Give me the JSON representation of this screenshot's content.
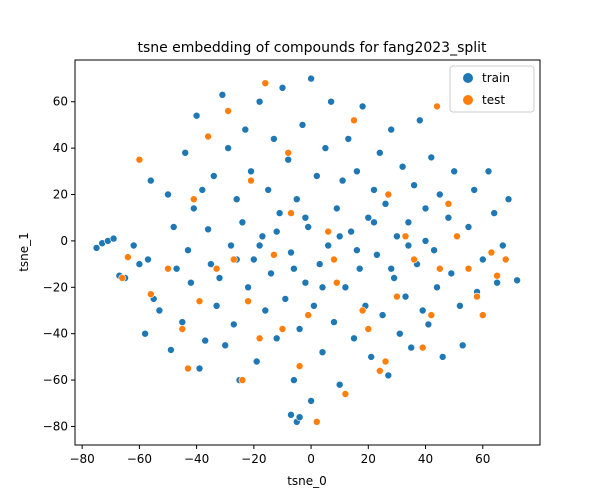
{
  "chart_data": {
    "type": "scatter",
    "title": "tsne embedding of compounds for fang2023_split",
    "xlabel": "tsne_0",
    "ylabel": "tsne_1",
    "xlim": [
      -82.5,
      80
    ],
    "ylim": [
      -88,
      78
    ],
    "xticks": [
      -80,
      -60,
      -40,
      -20,
      0,
      20,
      40,
      60
    ],
    "yticks": [
      -80,
      -60,
      -40,
      -20,
      0,
      20,
      40,
      60
    ],
    "legend_position": "top-right",
    "grid": false,
    "series": [
      {
        "name": "train",
        "color": "#1f77b4",
        "points": [
          [
            -75,
            -3
          ],
          [
            -73,
            -1
          ],
          [
            -71,
            0
          ],
          [
            -69,
            1
          ],
          [
            -67,
            -15
          ],
          [
            -65,
            -16
          ],
          [
            -62,
            -2
          ],
          [
            -60,
            -10
          ],
          [
            -58,
            -40
          ],
          [
            -57,
            -8
          ],
          [
            -56,
            26
          ],
          [
            -55,
            -25
          ],
          [
            -53,
            -30
          ],
          [
            -50,
            20
          ],
          [
            -49,
            -47
          ],
          [
            -48,
            6
          ],
          [
            -45,
            -35
          ],
          [
            -44,
            38
          ],
          [
            -42,
            -18
          ],
          [
            -41,
            14
          ],
          [
            -40,
            54
          ],
          [
            -39,
            -55
          ],
          [
            -37,
            -43
          ],
          [
            -36,
            5
          ],
          [
            -35,
            -10
          ],
          [
            -34,
            28
          ],
          [
            -33,
            -28
          ],
          [
            -31,
            63
          ],
          [
            -30,
            -45
          ],
          [
            -29,
            40
          ],
          [
            -28,
            -2
          ],
          [
            -27,
            -36
          ],
          [
            -26,
            18
          ],
          [
            -25,
            -60
          ],
          [
            -24,
            8
          ],
          [
            -23,
            48
          ],
          [
            -22,
            -20
          ],
          [
            -21,
            30
          ],
          [
            -20,
            -8
          ],
          [
            -19,
            -52
          ],
          [
            -18,
            60
          ],
          [
            -17,
            2
          ],
          [
            -16,
            -30
          ],
          [
            -15,
            22
          ],
          [
            -14,
            -14
          ],
          [
            -13,
            44
          ],
          [
            -12,
            -42
          ],
          [
            -11,
            12
          ],
          [
            -10,
            66
          ],
          [
            -9,
            -25
          ],
          [
            -8,
            35
          ],
          [
            -7,
            -5
          ],
          [
            -6,
            -60
          ],
          [
            -5,
            18
          ],
          [
            -4,
            -38
          ],
          [
            -3,
            50
          ],
          [
            -2,
            -18
          ],
          [
            -1,
            6
          ],
          [
            0,
            70
          ],
          [
            1,
            -28
          ],
          [
            2,
            28
          ],
          [
            3,
            -10
          ],
          [
            4,
            -48
          ],
          [
            5,
            40
          ],
          [
            6,
            -2
          ],
          [
            7,
            60
          ],
          [
            8,
            -35
          ],
          [
            9,
            14
          ],
          [
            10,
            -62
          ],
          [
            11,
            26
          ],
          [
            12,
            -20
          ],
          [
            13,
            44
          ],
          [
            14,
            4
          ],
          [
            15,
            -42
          ],
          [
            16,
            30
          ],
          [
            17,
            -12
          ],
          [
            18,
            58
          ],
          [
            19,
            -28
          ],
          [
            20,
            10
          ],
          [
            21,
            -50
          ],
          [
            22,
            22
          ],
          [
            23,
            -6
          ],
          [
            24,
            38
          ],
          [
            25,
            -32
          ],
          [
            26,
            16
          ],
          [
            27,
            -58
          ],
          [
            28,
            48
          ],
          [
            29,
            -16
          ],
          [
            30,
            2
          ],
          [
            31,
            -40
          ],
          [
            32,
            32
          ],
          [
            33,
            -24
          ],
          [
            34,
            8
          ],
          [
            35,
            -46
          ],
          [
            36,
            24
          ],
          [
            37,
            -10
          ],
          [
            38,
            52
          ],
          [
            39,
            -30
          ],
          [
            40,
            14
          ],
          [
            41,
            -36
          ],
          [
            42,
            36
          ],
          [
            43,
            -4
          ],
          [
            44,
            -20
          ],
          [
            45,
            20
          ],
          [
            46,
            -50
          ],
          [
            48,
            10
          ],
          [
            49,
            -14
          ],
          [
            50,
            30
          ],
          [
            52,
            -28
          ],
          [
            53,
            -45
          ],
          [
            55,
            6
          ],
          [
            57,
            22
          ],
          [
            58,
            -22
          ],
          [
            60,
            -8
          ],
          [
            62,
            30
          ],
          [
            64,
            12
          ],
          [
            65,
            -18
          ],
          [
            67,
            -2
          ],
          [
            69,
            18
          ],
          [
            72,
            -17
          ],
          [
            -47,
            -12
          ],
          [
            -43,
            -4
          ],
          [
            -38,
            22
          ],
          [
            -32,
            -16
          ],
          [
            -26,
            -8
          ],
          [
            -18,
            -2
          ],
          [
            -12,
            4
          ],
          [
            -6,
            -12
          ],
          [
            -2,
            10
          ],
          [
            4,
            -20
          ],
          [
            10,
            2
          ],
          [
            16,
            -4
          ],
          [
            22,
            8
          ],
          [
            28,
            -12
          ],
          [
            34,
            -2
          ],
          [
            40,
            0
          ],
          [
            -5,
            -78
          ],
          [
            -7,
            -75
          ],
          [
            -4,
            -76
          ],
          [
            0,
            -69
          ]
        ]
      },
      {
        "name": "test",
        "color": "#ff7f0e",
        "points": [
          [
            -66,
            -16
          ],
          [
            -64,
            -7
          ],
          [
            -60,
            35
          ],
          [
            -56,
            -23
          ],
          [
            -50,
            -12
          ],
          [
            -45,
            -38
          ],
          [
            -43,
            -55
          ],
          [
            -41,
            18
          ],
          [
            -39,
            -26
          ],
          [
            -36,
            45
          ],
          [
            -33,
            -12
          ],
          [
            -29,
            56
          ],
          [
            -27,
            -8
          ],
          [
            -24,
            -60
          ],
          [
            -21,
            26
          ],
          [
            -18,
            -42
          ],
          [
            -16,
            68
          ],
          [
            -13,
            -6
          ],
          [
            -10,
            -38
          ],
          [
            -7,
            12
          ],
          [
            -4,
            -54
          ],
          [
            -1,
            -32
          ],
          [
            2,
            -78
          ],
          [
            6,
            4
          ],
          [
            9,
            -18
          ],
          [
            12,
            -66
          ],
          [
            15,
            52
          ],
          [
            18,
            -30
          ],
          [
            20,
            -38
          ],
          [
            24,
            -56
          ],
          [
            27,
            20
          ],
          [
            30,
            -24
          ],
          [
            33,
            2
          ],
          [
            36,
            -8
          ],
          [
            39,
            -46
          ],
          [
            42,
            -32
          ],
          [
            45,
            -12
          ],
          [
            48,
            16
          ],
          [
            51,
            2
          ],
          [
            55,
            -12
          ],
          [
            58,
            -24
          ],
          [
            60,
            -32
          ],
          [
            63,
            -5
          ],
          [
            65,
            -15
          ],
          [
            68,
            -8
          ],
          [
            44,
            58
          ],
          [
            26,
            -52
          ],
          [
            -8,
            38
          ],
          [
            8,
            -8
          ],
          [
            -22,
            -26
          ]
        ]
      }
    ]
  }
}
